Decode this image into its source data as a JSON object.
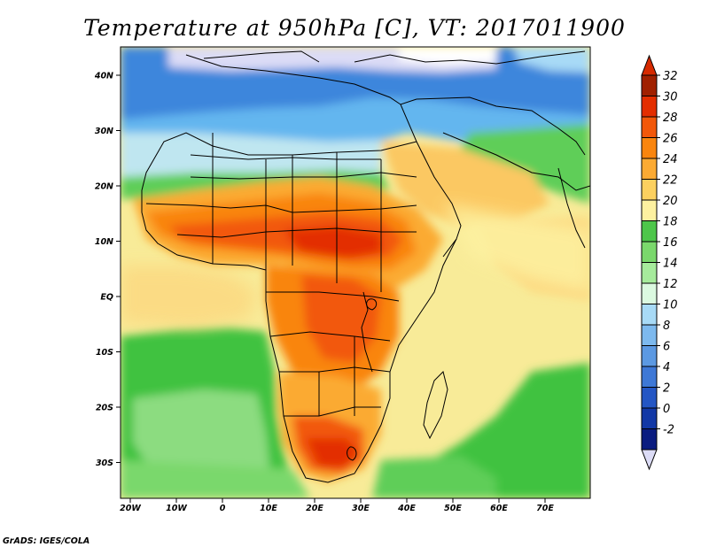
{
  "map": {
    "title": "Temperature at 950hPa [C], VT: 2017011900",
    "lat_labels": [
      "40N",
      "30N",
      "20N",
      "10N",
      "EQ",
      "10S",
      "20S",
      "30S"
    ],
    "lon_labels": [
      "20W",
      "10W",
      "0",
      "10E",
      "20E",
      "30E",
      "40E",
      "50E",
      "60E",
      "70E"
    ],
    "credit": "GrADS: IGES/COLA",
    "colorbar": {
      "labels": [
        "32",
        "30",
        "28",
        "26",
        "24",
        "22",
        "20",
        "18",
        "16",
        "14",
        "12",
        "10",
        "8",
        "6",
        "4",
        "2",
        "0",
        "-2"
      ],
      "colors": [
        "#a02000",
        "#e32e00",
        "#f2580a",
        "#f9850e",
        "#fbaa33",
        "#fcd05f",
        "#fdf1a0",
        "#4dc64a",
        "#7ad86c",
        "#a6eb9c",
        "#dbf9e0",
        "#a8daf6",
        "#7db9ee",
        "#5c99e2",
        "#3e78d6",
        "#2456c4",
        "#1238a6",
        "#0a1c80"
      ],
      "top_arrow_color": "#d62a00",
      "bottom_arrow_color": "#dcdcf6"
    }
  }
}
